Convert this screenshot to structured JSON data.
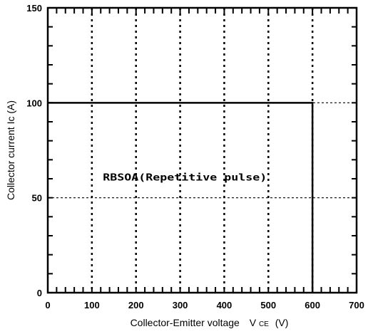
{
  "chart_data": {
    "type": "line",
    "title": "",
    "xlabel": "Collector-Emitter voltage",
    "xlabel_symbol": "V",
    "xlabel_subscript": "CE",
    "xlabel_unit": "(V)",
    "ylabel": "Collector current  Ic  (A)",
    "xlim": [
      0,
      700
    ],
    "ylim": [
      0,
      150
    ],
    "xticks": [
      "0",
      "100",
      "200",
      "300",
      "400",
      "500",
      "600",
      "700"
    ],
    "yticks": [
      "0",
      "50",
      "100",
      "150"
    ],
    "grid": true,
    "annotation": "RBSOA(Repetitive pulse)",
    "series": [
      {
        "x": [
          0,
          600,
          600
        ],
        "y": [
          100,
          100,
          0
        ]
      }
    ]
  }
}
